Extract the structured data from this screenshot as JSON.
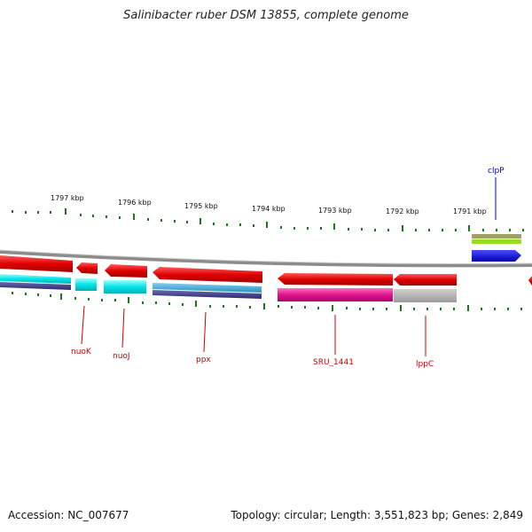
{
  "title": "Salinibacter ruber DSM 13855, complete genome",
  "footer": {
    "accession": "Accession: NC_007677",
    "summary": "Topology: circular; Length: 3,551,823 bp; Genes: 2,849"
  },
  "ruler_labels": [
    "1797 kbp",
    "1796 kbp",
    "1795 kbp",
    "1794 kbp",
    "1793 kbp",
    "1792 kbp",
    "1791 kbp"
  ],
  "gene_labels": {
    "clpP": "clpP",
    "nuoK": "nuoK",
    "nuoJ": "nuoJ",
    "ppx": "ppx",
    "sru1441": "SRU_1441",
    "lppC": "lppC"
  },
  "colors": {
    "backbone": "#8c8c8c",
    "gene_red": "#e00000",
    "cds_cyan": "#00e5e5",
    "cds_blue": "#3aa7d6",
    "cds_navy": "#3c3c86",
    "cds_magenta": "#e0148c",
    "cds_gray": "#b0b0b0",
    "gene_blue": "#0000dd",
    "olive": "#a0a060",
    "lime": "#90e020",
    "tick_green": "#1a7a1a",
    "label_red": "#cc0000",
    "label_blue": "#0000aa"
  }
}
